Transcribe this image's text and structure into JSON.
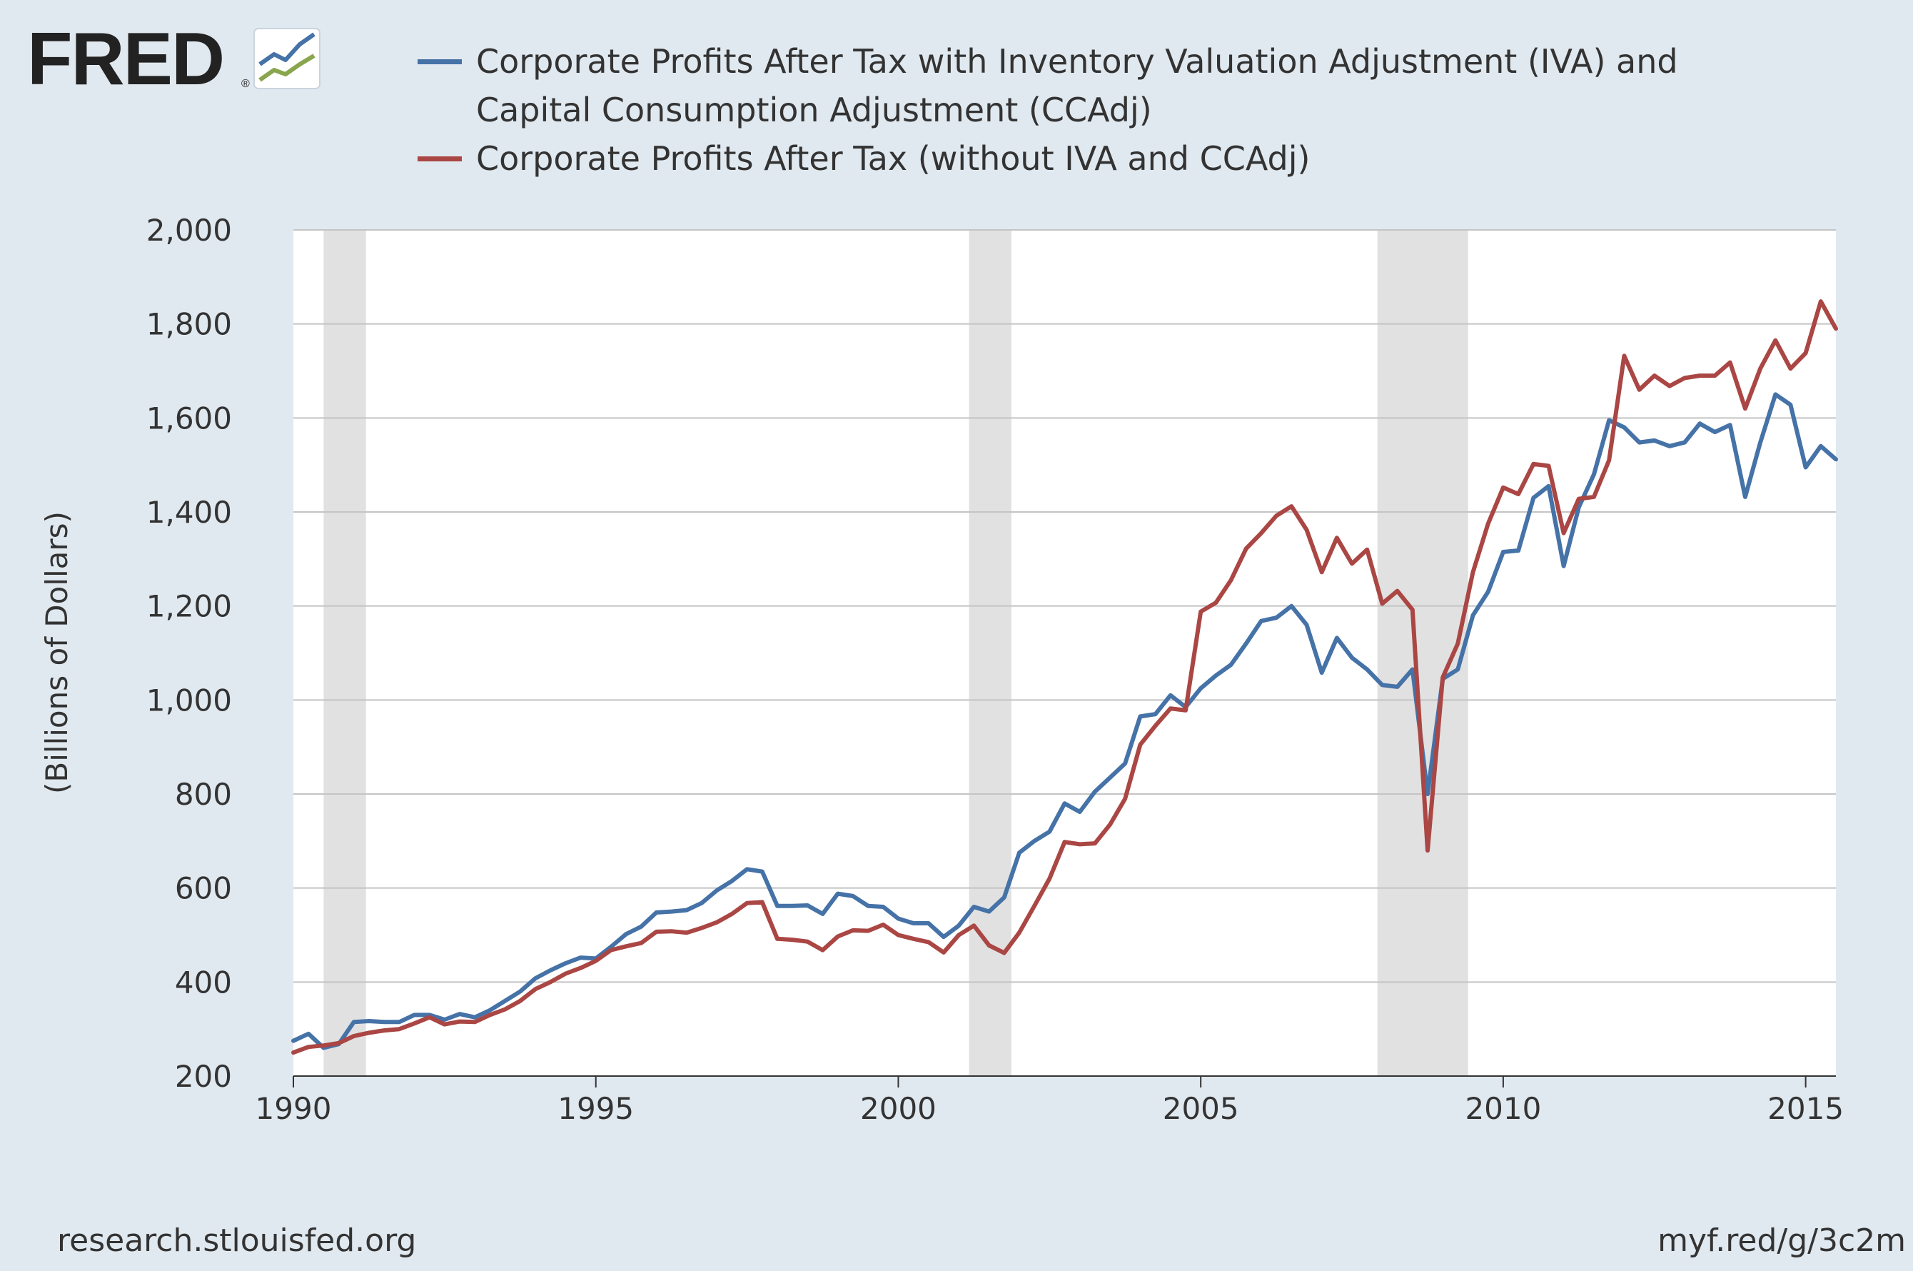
{
  "logo": {
    "text": "FRED",
    "registered": "®"
  },
  "colors": {
    "background": "#e1e9f0",
    "plot_bg": "#ffffff",
    "grid": "#c4c4c4",
    "recession": "#e1e1e1",
    "text": "#333333"
  },
  "legend": [
    {
      "lines": [
        "Corporate Profits After Tax with Inventory Valuation Adjustment (IVA) and",
        "Capital Consumption Adjustment (CCAdj)"
      ],
      "color": "#4572a7"
    },
    {
      "lines": [
        "Corporate Profits After Tax (without IVA and CCAdj)"
      ],
      "color": "#aa4643"
    }
  ],
  "footer": {
    "left": "research.stlouisfed.org",
    "right": "myf.red/g/3c2m"
  },
  "chart_data": {
    "type": "line",
    "title": "",
    "xlabel": "",
    "ylabel": "(Billions of Dollars)",
    "xlim": [
      1990.0,
      2015.5
    ],
    "ylim": [
      200,
      2000
    ],
    "yticks": [
      200,
      400,
      600,
      800,
      1000,
      1200,
      1400,
      1600,
      1800,
      2000
    ],
    "xticks": [
      1990,
      1995,
      2000,
      2005,
      2010,
      2015
    ],
    "ytick_labels": [
      "200",
      "400",
      "600",
      "800",
      "1,000",
      "1,200",
      "1,400",
      "1,600",
      "1,800",
      "2,000"
    ],
    "xtick_labels": [
      "1990",
      "1995",
      "2000",
      "2005",
      "2010",
      "2015"
    ],
    "grid": "horizontal",
    "recessions": [
      [
        1990.5,
        1991.2
      ],
      [
        2001.17,
        2001.87
      ],
      [
        2007.92,
        2009.42
      ]
    ],
    "series": [
      {
        "name": "Corporate Profits After Tax with Inventory Valuation Adjustment (IVA) and Capital Consumption Adjustment (CCAdj)",
        "color": "#4572a7",
        "x": [
          1990.0,
          1990.25,
          1990.5,
          1990.75,
          1991.0,
          1991.25,
          1991.5,
          1991.75,
          1992.0,
          1992.25,
          1992.5,
          1992.75,
          1993.0,
          1993.25,
          1993.5,
          1993.75,
          1994.0,
          1994.25,
          1994.5,
          1994.75,
          1995.0,
          1995.25,
          1995.5,
          1995.75,
          1996.0,
          1996.25,
          1996.5,
          1996.75,
          1997.0,
          1997.25,
          1997.5,
          1997.75,
          1998.0,
          1998.25,
          1998.5,
          1998.75,
          1999.0,
          1999.25,
          1999.5,
          1999.75,
          2000.0,
          2000.25,
          2000.5,
          2000.75,
          2001.0,
          2001.25,
          2001.5,
          2001.75,
          2002.0,
          2002.25,
          2002.5,
          2002.75,
          2003.0,
          2003.25,
          2003.5,
          2003.75,
          2004.0,
          2004.25,
          2004.5,
          2004.75,
          2005.0,
          2005.25,
          2005.5,
          2005.75,
          2006.0,
          2006.25,
          2006.5,
          2006.75,
          2007.0,
          2007.25,
          2007.5,
          2007.75,
          2008.0,
          2008.25,
          2008.5,
          2008.75,
          2009.0,
          2009.25,
          2009.5,
          2009.75,
          2010.0,
          2010.25,
          2010.5,
          2010.75,
          2011.0,
          2011.25,
          2011.5,
          2011.75,
          2012.0,
          2012.25,
          2012.5,
          2012.75,
          2013.0,
          2013.25,
          2013.5,
          2013.75,
          2014.0,
          2014.25,
          2014.5,
          2014.75,
          2015.0,
          2015.25,
          2015.5
        ],
        "values": [
          275,
          290,
          260,
          268,
          315,
          317,
          315,
          315,
          330,
          330,
          320,
          332,
          325,
          340,
          360,
          380,
          408,
          425,
          440,
          452,
          450,
          475,
          502,
          518,
          548,
          550,
          553,
          568,
          595,
          615,
          640,
          635,
          562,
          562,
          563,
          545,
          588,
          583,
          562,
          560,
          535,
          525,
          525,
          496,
          520,
          560,
          550,
          580,
          675,
          700,
          720,
          780,
          762,
          805,
          835,
          865,
          965,
          970,
          1010,
          985,
          1025,
          1052,
          1075,
          1120,
          1168,
          1175,
          1200,
          1160,
          1058,
          1132,
          1090,
          1065,
          1032,
          1028,
          1065,
          800,
          1045,
          1065,
          1180,
          1230,
          1315,
          1318,
          1430,
          1455,
          1285,
          1410,
          1480,
          1595,
          1580,
          1548,
          1552,
          1540,
          1548,
          1588,
          1570,
          1585,
          1432,
          1548,
          1650,
          1628,
          1495,
          1540,
          1512
        ]
      },
      {
        "name": "Corporate Profits After Tax (without IVA and CCAdj)",
        "color": "#aa4643",
        "x": [
          1990.0,
          1990.25,
          1990.5,
          1990.75,
          1991.0,
          1991.25,
          1991.5,
          1991.75,
          1992.0,
          1992.25,
          1992.5,
          1992.75,
          1993.0,
          1993.25,
          1993.5,
          1993.75,
          1994.0,
          1994.25,
          1994.5,
          1994.75,
          1995.0,
          1995.25,
          1995.5,
          1995.75,
          1996.0,
          1996.25,
          1996.5,
          1996.75,
          1997.0,
          1997.25,
          1997.5,
          1997.75,
          1998.0,
          1998.25,
          1998.5,
          1998.75,
          1999.0,
          1999.25,
          1999.5,
          1999.75,
          2000.0,
          2000.25,
          2000.5,
          2000.75,
          2001.0,
          2001.25,
          2001.5,
          2001.75,
          2002.0,
          2002.25,
          2002.5,
          2002.75,
          2003.0,
          2003.25,
          2003.5,
          2003.75,
          2004.0,
          2004.25,
          2004.5,
          2004.75,
          2005.0,
          2005.25,
          2005.5,
          2005.75,
          2006.0,
          2006.25,
          2006.5,
          2006.75,
          2007.0,
          2007.25,
          2007.5,
          2007.75,
          2008.0,
          2008.25,
          2008.5,
          2008.75,
          2009.0,
          2009.25,
          2009.5,
          2009.75,
          2010.0,
          2010.25,
          2010.5,
          2010.75,
          2011.0,
          2011.25,
          2011.5,
          2011.75,
          2012.0,
          2012.25,
          2012.5,
          2012.75,
          2013.0,
          2013.25,
          2013.5,
          2013.75,
          2014.0,
          2014.25,
          2014.5,
          2014.75,
          2015.0,
          2015.25,
          2015.5
        ],
        "values": [
          250,
          262,
          265,
          270,
          285,
          292,
          297,
          300,
          312,
          325,
          310,
          316,
          315,
          330,
          342,
          360,
          385,
          400,
          418,
          430,
          445,
          468,
          476,
          483,
          507,
          508,
          505,
          515,
          527,
          545,
          568,
          570,
          492,
          490,
          486,
          468,
          497,
          510,
          509,
          522,
          500,
          492,
          485,
          463,
          500,
          520,
          478,
          462,
          505,
          562,
          620,
          698,
          693,
          695,
          735,
          790,
          905,
          945,
          982,
          978,
          1188,
          1207,
          1255,
          1322,
          1355,
          1392,
          1412,
          1362,
          1272,
          1345,
          1290,
          1320,
          1205,
          1232,
          1192,
          680,
          1048,
          1120,
          1272,
          1375,
          1452,
          1438,
          1502,
          1498,
          1355,
          1428,
          1432,
          1510,
          1732,
          1660,
          1690,
          1668,
          1685,
          1690,
          1690,
          1718,
          1620,
          1705,
          1765,
          1705,
          1738,
          1848,
          1790
        ]
      }
    ]
  }
}
